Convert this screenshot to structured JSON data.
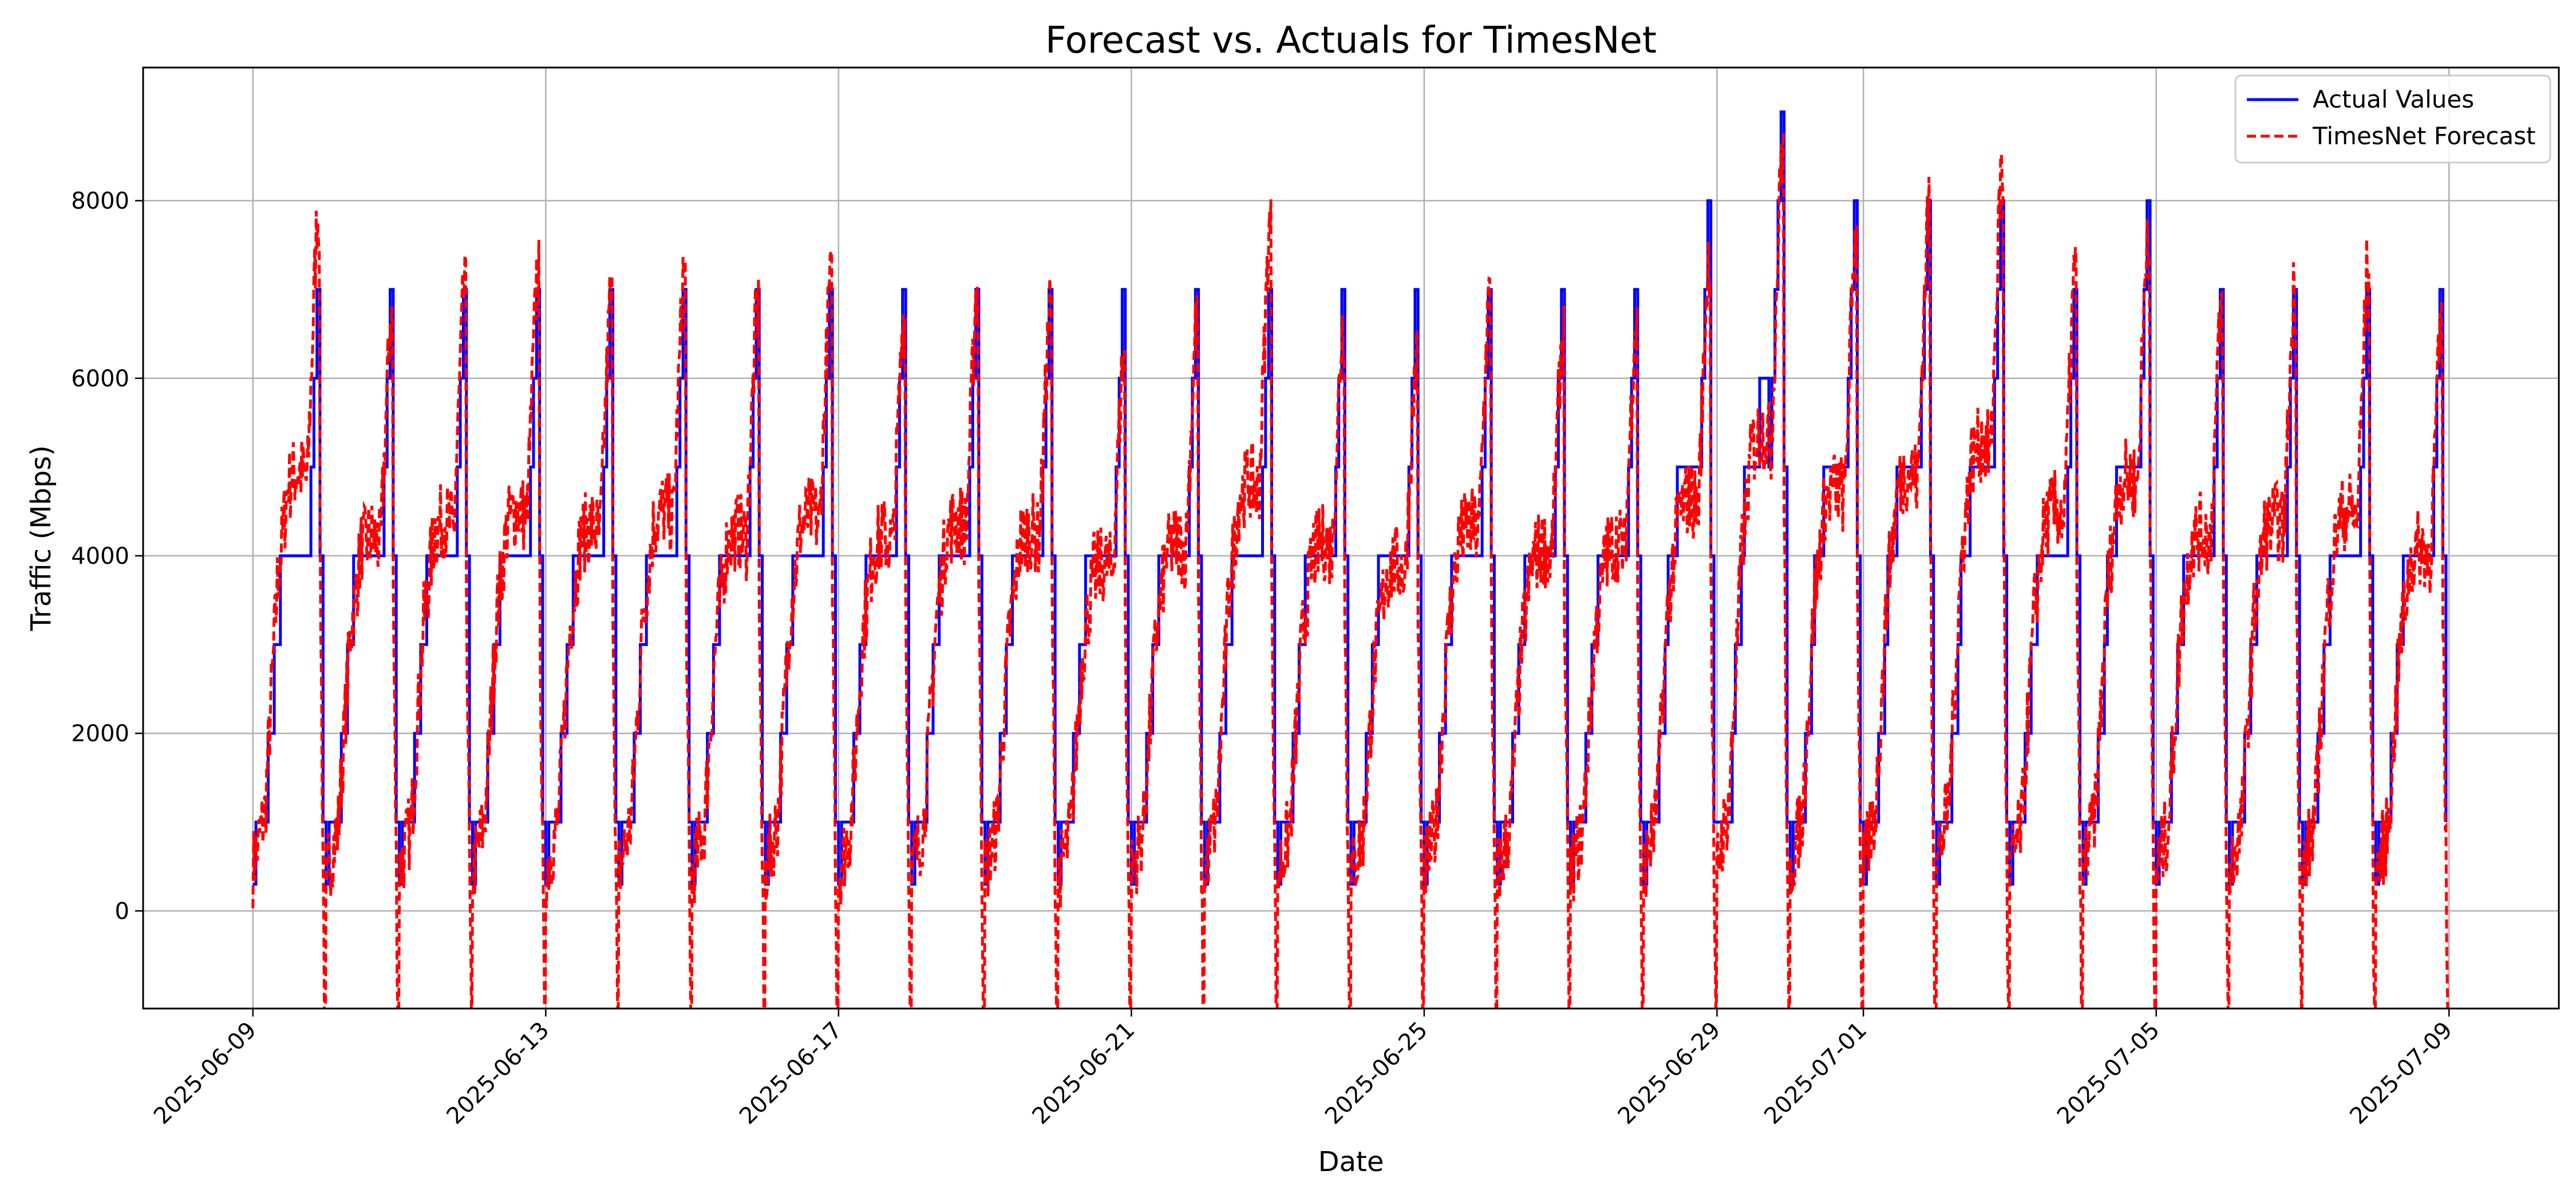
{
  "chart_data": {
    "type": "line",
    "title": "Forecast vs. Actuals for TimesNet",
    "xlabel": "Date",
    "ylabel": "Traffic (Mbps)",
    "x_tick_labels": [
      "2025-06-09",
      "2025-06-13",
      "2025-06-17",
      "2025-06-21",
      "2025-06-25",
      "2025-06-29",
      "2025-07-01",
      "2025-07-05",
      "2025-07-09"
    ],
    "y_tick_labels": [
      "0",
      "2000",
      "4000",
      "6000",
      "8000"
    ],
    "y_ticks": [
      0,
      2000,
      4000,
      6000,
      8000
    ],
    "xlim": [
      "2025-06-07 12:00",
      "2025-07-10 12:00"
    ],
    "ylim": [
      -1100,
      9500
    ],
    "x_range": [
      "2025-06-09",
      "2025-07-09"
    ],
    "grid": true,
    "legend_position": "top-right",
    "daily_peaks": [
      {
        "date": "2025-06-09",
        "actual": 7000,
        "forecast": 8000
      },
      {
        "date": "2025-06-10",
        "actual": 7000,
        "forecast": 6800
      },
      {
        "date": "2025-06-11",
        "actual": 7000,
        "forecast": 7100
      },
      {
        "date": "2025-06-12",
        "actual": 7000,
        "forecast": 7300
      },
      {
        "date": "2025-06-13",
        "actual": 7000,
        "forecast": 7000
      },
      {
        "date": "2025-06-14",
        "actual": 7000,
        "forecast": 7300
      },
      {
        "date": "2025-06-15",
        "actual": 7000,
        "forecast": 6900
      },
      {
        "date": "2025-06-16",
        "actual": 7000,
        "forecast": 7200
      },
      {
        "date": "2025-06-17",
        "actual": 7000,
        "forecast": 6800
      },
      {
        "date": "2025-06-18",
        "actual": 7000,
        "forecast": 7100
      },
      {
        "date": "2025-06-19",
        "actual": 7000,
        "forecast": 6900
      },
      {
        "date": "2025-06-20",
        "actual": 7000,
        "forecast": 6300
      },
      {
        "date": "2025-06-21",
        "actual": 7000,
        "forecast": 6700
      },
      {
        "date": "2025-06-22",
        "actual": 7000,
        "forecast": 7800
      },
      {
        "date": "2025-06-23",
        "actual": 7000,
        "forecast": 6700
      },
      {
        "date": "2025-06-24",
        "actual": 7000,
        "forecast": 6300
      },
      {
        "date": "2025-06-25",
        "actual": 7000,
        "forecast": 7000
      },
      {
        "date": "2025-06-26",
        "actual": 7000,
        "forecast": 6600
      },
      {
        "date": "2025-06-27",
        "actual": 7000,
        "forecast": 6700
      },
      {
        "date": "2025-06-28",
        "actual": 8000,
        "forecast": 7500
      },
      {
        "date": "2025-06-29",
        "actual": 9000,
        "forecast": 8700
      },
      {
        "date": "2025-06-30",
        "actual": 8000,
        "forecast": 7700
      },
      {
        "date": "2025-07-01",
        "actual": 8000,
        "forecast": 8000
      },
      {
        "date": "2025-07-02",
        "actual": 8000,
        "forecast": 8500
      },
      {
        "date": "2025-07-03",
        "actual": 7000,
        "forecast": 7300
      },
      {
        "date": "2025-07-04",
        "actual": 8000,
        "forecast": 7900
      },
      {
        "date": "2025-07-05",
        "actual": 7000,
        "forecast": 6900
      },
      {
        "date": "2025-07-06",
        "actual": 7000,
        "forecast": 7100
      },
      {
        "date": "2025-07-07",
        "actual": 7000,
        "forecast": 7300
      },
      {
        "date": "2025-07-08",
        "actual": 7000,
        "forecast": 6600
      }
    ],
    "series": [
      {
        "name": "Actual Values",
        "color": "#0000ff",
        "style": "solid"
      },
      {
        "name": "TimesNet Forecast",
        "color": "#ff0000",
        "style": "dashed"
      }
    ]
  }
}
